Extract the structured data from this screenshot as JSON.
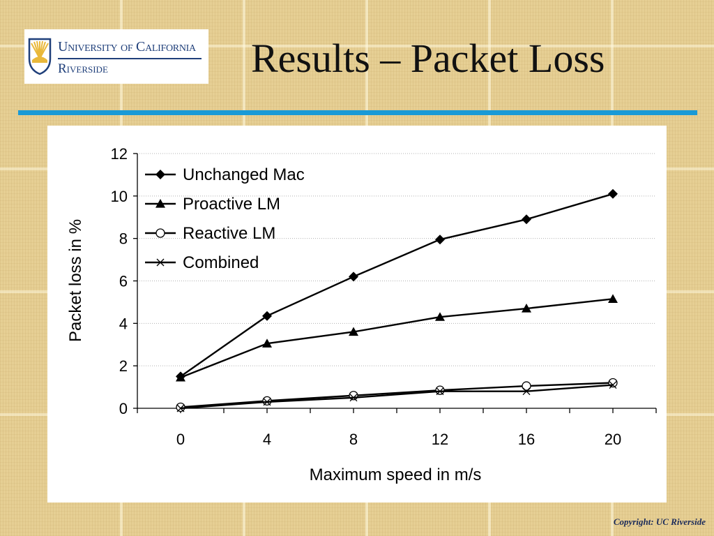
{
  "logo": {
    "line1": "University of California",
    "line2": "Riverside"
  },
  "slide": {
    "title": "Results – Packet Loss",
    "copyright": "Copyright: UC Riverside"
  },
  "colors": {
    "accent_bar": "#1a9ad6",
    "logo_blue": "#1f3f7a",
    "logo_gold": "#e9b83a"
  },
  "chart_data": {
    "type": "line",
    "title": "",
    "xlabel": "Maximum speed in m/s",
    "ylabel": "Packet loss in %",
    "x": [
      0,
      4,
      8,
      12,
      16,
      20
    ],
    "x_ticks": [
      "0",
      "4",
      "8",
      "12",
      "16",
      "20"
    ],
    "xlim": [
      -2,
      22
    ],
    "ylim": [
      0,
      12
    ],
    "y_ticks": [
      "0",
      "2",
      "4",
      "6",
      "8",
      "10",
      "12"
    ],
    "grid": "horizontal dotted",
    "legend": "top-left",
    "series": [
      {
        "name": "Unchanged Mac",
        "marker": "diamond",
        "values": [
          1.5,
          4.35,
          6.2,
          7.95,
          8.9,
          10.1
        ]
      },
      {
        "name": "Proactive LM",
        "marker": "triangle",
        "values": [
          1.45,
          3.05,
          3.6,
          4.3,
          4.7,
          5.15
        ]
      },
      {
        "name": "Reactive LM",
        "marker": "circle",
        "values": [
          0.05,
          0.35,
          0.6,
          0.85,
          1.05,
          1.2
        ]
      },
      {
        "name": "Combined",
        "marker": "x",
        "values": [
          0.0,
          0.3,
          0.5,
          0.8,
          0.8,
          1.1
        ]
      }
    ]
  }
}
